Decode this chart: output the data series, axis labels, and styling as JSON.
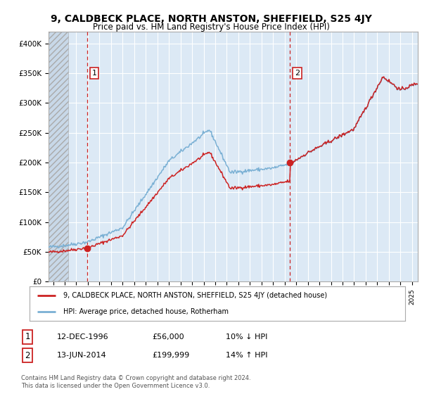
{
  "title": "9, CALDBECK PLACE, NORTH ANSTON, SHEFFIELD, S25 4JY",
  "subtitle": "Price paid vs. HM Land Registry's House Price Index (HPI)",
  "ylim": [
    0,
    420000
  ],
  "yticks": [
    0,
    50000,
    100000,
    150000,
    200000,
    250000,
    300000,
    350000,
    400000
  ],
  "ytick_labels": [
    "£0",
    "£50K",
    "£100K",
    "£150K",
    "£200K",
    "£250K",
    "£300K",
    "£350K",
    "£400K"
  ],
  "xlim_start": 1993.6,
  "xlim_end": 2025.5,
  "hatch_end": 1995.3,
  "red_line_color": "#cc2222",
  "blue_line_color": "#7ab0d4",
  "marker_color": "#cc2222",
  "plot_bg_color": "#dce9f5",
  "point1_x": 1996.95,
  "point1_y": 56000,
  "point2_x": 2014.45,
  "point2_y": 199999,
  "legend_line1": "9, CALDBECK PLACE, NORTH ANSTON, SHEFFIELD, S25 4JY (detached house)",
  "legend_line2": "HPI: Average price, detached house, Rotherham",
  "table_row1_num": "1",
  "table_row1_date": "12-DEC-1996",
  "table_row1_price": "£56,000",
  "table_row1_hpi": "10% ↓ HPI",
  "table_row2_num": "2",
  "table_row2_date": "13-JUN-2014",
  "table_row2_price": "£199,999",
  "table_row2_hpi": "14% ↑ HPI",
  "footer": "Contains HM Land Registry data © Crown copyright and database right 2024.\nThis data is licensed under the Open Government Licence v3.0.",
  "bg_color": "#ffffff",
  "grid_color": "#ffffff",
  "vline_color": "#cc2222",
  "title_fontsize": 10,
  "subtitle_fontsize": 8.5
}
